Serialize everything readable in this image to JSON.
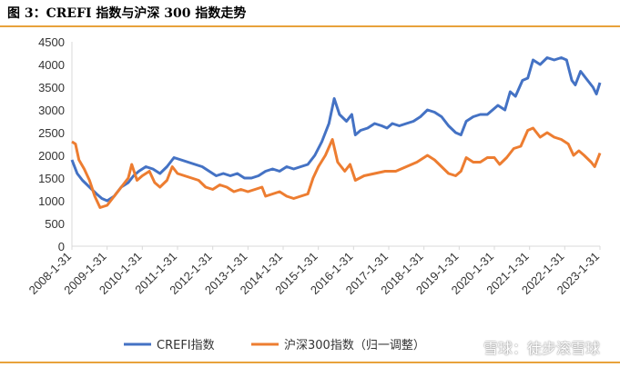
{
  "figure": {
    "title": "图 3：CREFI 指数与沪深 300 指数走势"
  },
  "watermark": "雪球：徒步滚雪球",
  "chart_data": {
    "type": "line",
    "ylim": [
      0,
      4500
    ],
    "yticks": [
      0,
      500,
      1000,
      1500,
      2000,
      2500,
      3000,
      3500,
      4000,
      4500
    ],
    "xticks": [
      "2008-1-31",
      "2009-1-31",
      "2010-1-31",
      "2011-1-31",
      "2012-1-31",
      "2013-1-31",
      "2014-1-31",
      "2015-1-31",
      "2016-1-31",
      "2017-1-31",
      "2018-1-31",
      "2019-1-31",
      "2020-1-31",
      "2021-1-31",
      "2022-1-31",
      "2023-1-31"
    ],
    "xrange": [
      2008.0,
      2023.0
    ],
    "grid": false,
    "legend_position": "bottom",
    "series": [
      {
        "name": "CREFI指数",
        "color": "#4472c4",
        "points": [
          [
            2008.0,
            1900
          ],
          [
            2008.15,
            1600
          ],
          [
            2008.3,
            1450
          ],
          [
            2008.5,
            1300
          ],
          [
            2008.7,
            1150
          ],
          [
            2008.85,
            1050
          ],
          [
            2009.0,
            1000
          ],
          [
            2009.2,
            1100
          ],
          [
            2009.4,
            1300
          ],
          [
            2009.6,
            1400
          ],
          [
            2009.75,
            1550
          ],
          [
            2009.9,
            1650
          ],
          [
            2010.1,
            1750
          ],
          [
            2010.3,
            1700
          ],
          [
            2010.5,
            1600
          ],
          [
            2010.7,
            1750
          ],
          [
            2010.9,
            1950
          ],
          [
            2011.1,
            1900
          ],
          [
            2011.3,
            1850
          ],
          [
            2011.5,
            1800
          ],
          [
            2011.7,
            1750
          ],
          [
            2011.9,
            1650
          ],
          [
            2012.1,
            1550
          ],
          [
            2012.3,
            1600
          ],
          [
            2012.5,
            1550
          ],
          [
            2012.7,
            1600
          ],
          [
            2012.9,
            1500
          ],
          [
            2013.1,
            1500
          ],
          [
            2013.3,
            1550
          ],
          [
            2013.5,
            1650
          ],
          [
            2013.7,
            1700
          ],
          [
            2013.9,
            1650
          ],
          [
            2014.1,
            1750
          ],
          [
            2014.3,
            1700
          ],
          [
            2014.5,
            1750
          ],
          [
            2014.7,
            1800
          ],
          [
            2014.9,
            2000
          ],
          [
            2015.1,
            2300
          ],
          [
            2015.3,
            2700
          ],
          [
            2015.45,
            3250
          ],
          [
            2015.6,
            2900
          ],
          [
            2015.8,
            2750
          ],
          [
            2015.95,
            2900
          ],
          [
            2016.05,
            2450
          ],
          [
            2016.2,
            2550
          ],
          [
            2016.4,
            2600
          ],
          [
            2016.6,
            2700
          ],
          [
            2016.8,
            2650
          ],
          [
            2016.95,
            2600
          ],
          [
            2017.1,
            2700
          ],
          [
            2017.3,
            2650
          ],
          [
            2017.5,
            2700
          ],
          [
            2017.7,
            2750
          ],
          [
            2017.9,
            2850
          ],
          [
            2018.1,
            3000
          ],
          [
            2018.3,
            2950
          ],
          [
            2018.5,
            2850
          ],
          [
            2018.7,
            2650
          ],
          [
            2018.9,
            2500
          ],
          [
            2019.05,
            2450
          ],
          [
            2019.2,
            2750
          ],
          [
            2019.4,
            2850
          ],
          [
            2019.6,
            2900
          ],
          [
            2019.8,
            2900
          ],
          [
            2019.95,
            3000
          ],
          [
            2020.1,
            3100
          ],
          [
            2020.3,
            3000
          ],
          [
            2020.45,
            3400
          ],
          [
            2020.6,
            3300
          ],
          [
            2020.8,
            3650
          ],
          [
            2020.95,
            3700
          ],
          [
            2021.1,
            4100
          ],
          [
            2021.3,
            4000
          ],
          [
            2021.5,
            4150
          ],
          [
            2021.7,
            4100
          ],
          [
            2021.9,
            4150
          ],
          [
            2022.05,
            4100
          ],
          [
            2022.2,
            3650
          ],
          [
            2022.3,
            3550
          ],
          [
            2022.45,
            3850
          ],
          [
            2022.6,
            3700
          ],
          [
            2022.8,
            3500
          ],
          [
            2022.9,
            3350
          ],
          [
            2023.0,
            3600
          ]
        ]
      },
      {
        "name": "沪深300指数（归一调整）",
        "color": "#ed7d31",
        "points": [
          [
            2008.0,
            2300
          ],
          [
            2008.1,
            2250
          ],
          [
            2008.2,
            1900
          ],
          [
            2008.35,
            1700
          ],
          [
            2008.5,
            1450
          ],
          [
            2008.65,
            1100
          ],
          [
            2008.8,
            850
          ],
          [
            2009.0,
            900
          ],
          [
            2009.15,
            1050
          ],
          [
            2009.3,
            1200
          ],
          [
            2009.45,
            1350
          ],
          [
            2009.6,
            1500
          ],
          [
            2009.7,
            1800
          ],
          [
            2009.85,
            1450
          ],
          [
            2010.0,
            1550
          ],
          [
            2010.2,
            1650
          ],
          [
            2010.35,
            1400
          ],
          [
            2010.5,
            1300
          ],
          [
            2010.7,
            1450
          ],
          [
            2010.85,
            1750
          ],
          [
            2011.0,
            1600
          ],
          [
            2011.2,
            1550
          ],
          [
            2011.4,
            1500
          ],
          [
            2011.6,
            1450
          ],
          [
            2011.8,
            1300
          ],
          [
            2012.0,
            1250
          ],
          [
            2012.2,
            1350
          ],
          [
            2012.4,
            1300
          ],
          [
            2012.6,
            1200
          ],
          [
            2012.8,
            1250
          ],
          [
            2013.0,
            1200
          ],
          [
            2013.2,
            1250
          ],
          [
            2013.4,
            1300
          ],
          [
            2013.5,
            1100
          ],
          [
            2013.7,
            1150
          ],
          [
            2013.9,
            1200
          ],
          [
            2014.1,
            1100
          ],
          [
            2014.3,
            1050
          ],
          [
            2014.5,
            1100
          ],
          [
            2014.7,
            1150
          ],
          [
            2014.85,
            1500
          ],
          [
            2015.0,
            1750
          ],
          [
            2015.2,
            2000
          ],
          [
            2015.4,
            2350
          ],
          [
            2015.55,
            1850
          ],
          [
            2015.75,
            1650
          ],
          [
            2015.9,
            1800
          ],
          [
            2016.05,
            1450
          ],
          [
            2016.3,
            1550
          ],
          [
            2016.6,
            1600
          ],
          [
            2016.9,
            1650
          ],
          [
            2017.2,
            1650
          ],
          [
            2017.5,
            1750
          ],
          [
            2017.8,
            1850
          ],
          [
            2018.0,
            1950
          ],
          [
            2018.1,
            2000
          ],
          [
            2018.3,
            1900
          ],
          [
            2018.5,
            1750
          ],
          [
            2018.7,
            1600
          ],
          [
            2018.9,
            1550
          ],
          [
            2019.05,
            1650
          ],
          [
            2019.2,
            1950
          ],
          [
            2019.4,
            1850
          ],
          [
            2019.6,
            1850
          ],
          [
            2019.8,
            1950
          ],
          [
            2020.0,
            1950
          ],
          [
            2020.15,
            1800
          ],
          [
            2020.35,
            1950
          ],
          [
            2020.55,
            2150
          ],
          [
            2020.75,
            2200
          ],
          [
            2020.95,
            2550
          ],
          [
            2021.1,
            2600
          ],
          [
            2021.3,
            2400
          ],
          [
            2021.5,
            2500
          ],
          [
            2021.7,
            2400
          ],
          [
            2021.9,
            2350
          ],
          [
            2022.1,
            2250
          ],
          [
            2022.25,
            2000
          ],
          [
            2022.4,
            2100
          ],
          [
            2022.55,
            2000
          ],
          [
            2022.75,
            1850
          ],
          [
            2022.85,
            1750
          ],
          [
            2023.0,
            2050
          ]
        ]
      }
    ]
  }
}
